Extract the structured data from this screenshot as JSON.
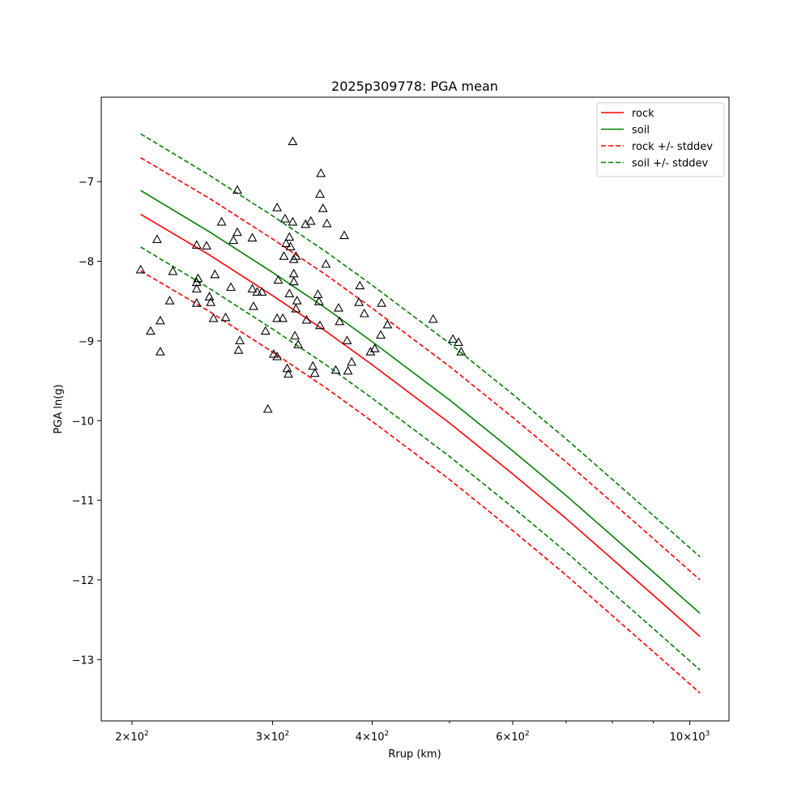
{
  "chart_data": {
    "type": "line",
    "title": "2025p309778: PGA mean",
    "xlabel": "Rrup (km)",
    "ylabel": "PGA ln(g)",
    "xscale": "log",
    "xlim": [
      183,
      1120
    ],
    "ylim": [
      -13.77,
      -5.94
    ],
    "yticks": [
      -13,
      -12,
      -11,
      -10,
      -9,
      -8,
      -7
    ],
    "xticks_major": [
      {
        "value": 200,
        "base": "2",
        "exp": "2"
      },
      {
        "value": 300,
        "base": "3",
        "exp": "2"
      },
      {
        "value": 400,
        "base": "4",
        "exp": "2"
      },
      {
        "value": 600,
        "base": "6",
        "exp": "2"
      },
      {
        "value": 1000,
        "base": "10",
        "exp": "3"
      }
    ],
    "xticks_minor": [
      500,
      700,
      800,
      900
    ],
    "legend_position": "top-right",
    "series": [
      {
        "name": "rock",
        "style": "solid",
        "color": "#ff0000",
        "x": [
          205,
          250,
          300,
          350,
          400,
          500,
          600,
          700,
          800,
          900,
          1030
        ],
        "y": [
          -7.41,
          -7.92,
          -8.43,
          -8.88,
          -9.3,
          -10.03,
          -10.67,
          -11.23,
          -11.74,
          -12.19,
          -12.71
        ]
      },
      {
        "name": "soil",
        "style": "solid",
        "color": "#008000",
        "x": [
          205,
          250,
          300,
          350,
          400,
          500,
          600,
          700,
          800,
          900,
          1030
        ],
        "y": [
          -7.11,
          -7.63,
          -8.14,
          -8.59,
          -9.01,
          -9.74,
          -10.38,
          -10.94,
          -11.45,
          -11.9,
          -12.42
        ]
      },
      {
        "name": "rock +/- stddev",
        "style": "dashed",
        "color": "#ff0000",
        "x": [
          205,
          250,
          300,
          350,
          400,
          500,
          600,
          700,
          800,
          900,
          1030
        ],
        "y": [
          -6.7,
          -7.21,
          -7.72,
          -8.17,
          -8.59,
          -9.32,
          -9.96,
          -10.52,
          -11.03,
          -11.48,
          -12.0
        ]
      },
      {
        "name": "",
        "style": "dashed",
        "color": "#ff0000",
        "x": [
          205,
          250,
          300,
          350,
          400,
          500,
          600,
          700,
          800,
          900,
          1030
        ],
        "y": [
          -8.12,
          -8.63,
          -9.14,
          -9.59,
          -10.01,
          -10.74,
          -11.38,
          -11.94,
          -12.45,
          -12.9,
          -13.42
        ]
      },
      {
        "name": "soil +/- stddev",
        "style": "dashed",
        "color": "#008000",
        "x": [
          205,
          250,
          300,
          350,
          400,
          500,
          600,
          700,
          800,
          900,
          1030
        ],
        "y": [
          -6.4,
          -6.92,
          -7.43,
          -7.88,
          -8.3,
          -9.03,
          -9.67,
          -10.23,
          -10.74,
          -11.19,
          -11.71
        ]
      },
      {
        "name": "",
        "style": "dashed",
        "color": "#008000",
        "x": [
          205,
          250,
          300,
          350,
          400,
          500,
          600,
          700,
          800,
          900,
          1030
        ],
        "y": [
          -7.82,
          -8.34,
          -8.85,
          -9.3,
          -9.72,
          -10.45,
          -11.09,
          -11.65,
          -12.16,
          -12.61,
          -13.13
        ]
      }
    ],
    "observations": {
      "marker": "triangle-open",
      "color": "#000000",
      "points": [
        [
          205,
          -8.11
        ],
        [
          211,
          -8.88
        ],
        [
          215,
          -7.73
        ],
        [
          217,
          -8.75
        ],
        [
          217,
          -9.14
        ],
        [
          223,
          -8.5
        ],
        [
          225,
          -8.13
        ],
        [
          241,
          -7.8
        ],
        [
          241,
          -8.27
        ],
        [
          241,
          -8.35
        ],
        [
          241,
          -8.53
        ],
        [
          242,
          -8.22
        ],
        [
          248,
          -7.81
        ],
        [
          250,
          -8.45
        ],
        [
          251,
          -8.52
        ],
        [
          253,
          -8.72
        ],
        [
          254,
          -8.17
        ],
        [
          259,
          -7.51
        ],
        [
          262,
          -8.71
        ],
        [
          266,
          -8.33
        ],
        [
          268,
          -7.74
        ],
        [
          271,
          -7.64
        ],
        [
          271,
          -7.11
        ],
        [
          272,
          -9.12
        ],
        [
          273,
          -9.0
        ],
        [
          283,
          -7.71
        ],
        [
          283,
          -8.35
        ],
        [
          284,
          -8.57
        ],
        [
          287,
          -8.39
        ],
        [
          291,
          -8.39
        ],
        [
          294,
          -8.88
        ],
        [
          296,
          -9.86
        ],
        [
          301,
          -9.17
        ],
        [
          304,
          -9.2
        ],
        [
          304,
          -8.72
        ],
        [
          304,
          -7.33
        ],
        [
          305,
          -8.24
        ],
        [
          309,
          -8.72
        ],
        [
          310,
          -7.94
        ],
        [
          311,
          -7.47
        ],
        [
          312,
          -7.78
        ],
        [
          313,
          -9.35
        ],
        [
          314,
          -9.42
        ],
        [
          315,
          -8.41
        ],
        [
          315,
          -7.7
        ],
        [
          316,
          -7.82
        ],
        [
          318,
          -6.5
        ],
        [
          318,
          -7.51
        ],
        [
          319,
          -7.98
        ],
        [
          319,
          -8.26
        ],
        [
          319,
          -8.16
        ],
        [
          320,
          -8.94
        ],
        [
          321,
          -7.94
        ],
        [
          321,
          -8.6
        ],
        [
          322,
          -8.5
        ],
        [
          323,
          -9.05
        ],
        [
          330,
          -7.54
        ],
        [
          331,
          -8.74
        ],
        [
          335,
          -7.5
        ],
        [
          337,
          -9.32
        ],
        [
          339,
          -9.41
        ],
        [
          342,
          -8.42
        ],
        [
          343,
          -8.51
        ],
        [
          344,
          -8.81
        ],
        [
          344,
          -7.16
        ],
        [
          345,
          -6.9
        ],
        [
          347,
          -7.34
        ],
        [
          350,
          -8.04
        ],
        [
          351,
          -7.53
        ],
        [
          360,
          -9.37
        ],
        [
          363,
          -8.59
        ],
        [
          364,
          -8.76
        ],
        [
          369,
          -7.68
        ],
        [
          372,
          -9.0
        ],
        [
          373,
          -9.38
        ],
        [
          377,
          -9.27
        ],
        [
          385,
          -8.52
        ],
        [
          386,
          -8.31
        ],
        [
          391,
          -8.66
        ],
        [
          398,
          -9.14
        ],
        [
          403,
          -9.1
        ],
        [
          410,
          -8.93
        ],
        [
          411,
          -8.53
        ],
        [
          418,
          -8.8
        ],
        [
          477,
          -8.73
        ],
        [
          505,
          -8.98
        ],
        [
          513,
          -9.02
        ],
        [
          517,
          -9.14
        ]
      ]
    }
  }
}
